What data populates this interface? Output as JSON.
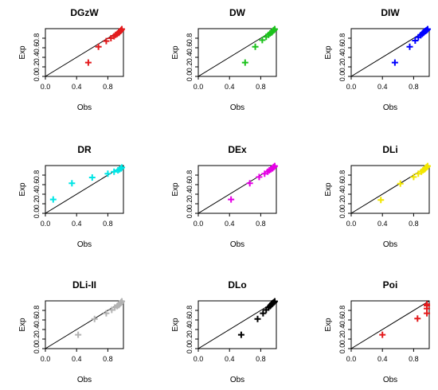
{
  "chart_data": [
    {
      "type": "scatter",
      "title": "DGzW",
      "xlabel": "Obs",
      "ylabel": "Exp",
      "xticks": [
        "0.0",
        "0.4",
        "0.8"
      ],
      "yticks": [
        "0.0",
        "0.2",
        "0.4",
        "0.6",
        "0.8"
      ],
      "xlim": [
        0,
        1
      ],
      "ylim": [
        0,
        1
      ],
      "reference_line": "y = x",
      "color": "#e41a1c",
      "marker": "plus",
      "x": [
        0.55,
        0.68,
        0.78,
        0.84,
        0.88,
        0.9,
        0.92,
        0.94,
        0.95,
        0.96,
        0.97,
        0.98
      ],
      "y": [
        0.29,
        0.62,
        0.74,
        0.8,
        0.84,
        0.87,
        0.89,
        0.91,
        0.93,
        0.95,
        0.97,
        0.99
      ]
    },
    {
      "type": "scatter",
      "title": "DW",
      "xlabel": "Obs",
      "ylabel": "Exp",
      "xticks": [
        "0.0",
        "0.4",
        "0.8"
      ],
      "yticks": [
        "0.0",
        "0.2",
        "0.4",
        "0.6",
        "0.8"
      ],
      "xlim": [
        0,
        1
      ],
      "ylim": [
        0,
        1
      ],
      "reference_line": "y = x",
      "color": "#1cc21c",
      "marker": "plus",
      "x": [
        0.6,
        0.73,
        0.82,
        0.87,
        0.9,
        0.92,
        0.94,
        0.95,
        0.96,
        0.97,
        0.98
      ],
      "y": [
        0.29,
        0.62,
        0.76,
        0.83,
        0.87,
        0.9,
        0.92,
        0.94,
        0.96,
        0.97,
        0.99
      ]
    },
    {
      "type": "scatter",
      "title": "DIW",
      "xlabel": "Obs",
      "ylabel": "Exp",
      "xticks": [
        "0.0",
        "0.4",
        "0.8"
      ],
      "yticks": [
        "0.0",
        "0.2",
        "0.4",
        "0.6",
        "0.8"
      ],
      "xlim": [
        0,
        1
      ],
      "ylim": [
        0,
        1
      ],
      "reference_line": "y = x",
      "color": "#0000ff",
      "marker": "plus",
      "x": [
        0.56,
        0.75,
        0.82,
        0.86,
        0.89,
        0.91,
        0.92,
        0.93,
        0.94,
        0.95,
        0.96,
        0.97,
        0.98
      ],
      "y": [
        0.29,
        0.62,
        0.75,
        0.82,
        0.86,
        0.89,
        0.91,
        0.92,
        0.94,
        0.95,
        0.96,
        0.97,
        0.99
      ]
    },
    {
      "type": "scatter",
      "title": "DR",
      "xlabel": "Obs",
      "ylabel": "Exp",
      "xticks": [
        "0.0",
        "0.4",
        "0.8"
      ],
      "yticks": [
        "0.0",
        "0.2",
        "0.4",
        "0.6",
        "0.8"
      ],
      "xlim": [
        0,
        1
      ],
      "ylim": [
        0,
        1
      ],
      "reference_line": "y = x",
      "color": "#00e5e5",
      "marker": "plus",
      "x": [
        0.1,
        0.34,
        0.6,
        0.8,
        0.88,
        0.93,
        0.95,
        0.97,
        0.98
      ],
      "y": [
        0.29,
        0.63,
        0.75,
        0.83,
        0.87,
        0.9,
        0.92,
        0.94,
        0.96
      ]
    },
    {
      "type": "scatter",
      "title": "DEx",
      "xlabel": "Obs",
      "ylabel": "Exp",
      "xticks": [
        "0.0",
        "0.4",
        "0.8"
      ],
      "yticks": [
        "0.0",
        "0.2",
        "0.4",
        "0.6",
        "0.8"
      ],
      "xlim": [
        0,
        1
      ],
      "ylim": [
        0,
        1
      ],
      "reference_line": "y = x",
      "color": "#e600e6",
      "marker": "plus",
      "x": [
        0.42,
        0.66,
        0.78,
        0.85,
        0.89,
        0.91,
        0.93,
        0.95,
        0.96,
        0.97,
        0.98
      ],
      "y": [
        0.29,
        0.63,
        0.76,
        0.83,
        0.87,
        0.9,
        0.92,
        0.94,
        0.96,
        0.97,
        0.99
      ]
    },
    {
      "type": "scatter",
      "title": "DLi",
      "xlabel": "Obs",
      "ylabel": "Exp",
      "xticks": [
        "0.0",
        "0.4",
        "0.8"
      ],
      "yticks": [
        "0.0",
        "0.2",
        "0.4",
        "0.6",
        "0.8"
      ],
      "xlim": [
        0,
        1
      ],
      "ylim": [
        0,
        1
      ],
      "reference_line": "y = x",
      "color": "#f2e600",
      "marker": "plus",
      "x": [
        0.38,
        0.63,
        0.8,
        0.86,
        0.9,
        0.92,
        0.94,
        0.95,
        0.96,
        0.97,
        0.98
      ],
      "y": [
        0.28,
        0.62,
        0.76,
        0.83,
        0.87,
        0.9,
        0.92,
        0.94,
        0.96,
        0.97,
        0.99
      ]
    },
    {
      "type": "scatter",
      "title": "DLi-II",
      "xlabel": "Obs",
      "ylabel": "Exp",
      "xticks": [
        "0.0",
        "0.4",
        "0.8"
      ],
      "yticks": [
        "0.0",
        "0.2",
        "0.4",
        "0.6",
        "0.8"
      ],
      "xlim": [
        0,
        1
      ],
      "ylim": [
        0,
        1
      ],
      "reference_line": "y = x",
      "color": "#b3b3b3",
      "marker": "plus",
      "x": [
        0.42,
        0.63,
        0.78,
        0.85,
        0.89,
        0.92,
        0.94,
        0.95,
        0.96,
        0.97,
        0.98
      ],
      "y": [
        0.29,
        0.62,
        0.74,
        0.81,
        0.86,
        0.89,
        0.91,
        0.93,
        0.95,
        0.97,
        0.99
      ]
    },
    {
      "type": "scatter",
      "title": "DLo",
      "xlabel": "Obs",
      "ylabel": "Exp",
      "xticks": [
        "0.0",
        "0.4",
        "0.8"
      ],
      "yticks": [
        "0.0",
        "0.2",
        "0.4",
        "0.6",
        "0.8"
      ],
      "xlim": [
        0,
        1
      ],
      "ylim": [
        0,
        1
      ],
      "reference_line": "y = x",
      "color": "#000000",
      "marker": "plus",
      "x": [
        0.55,
        0.76,
        0.83,
        0.87,
        0.9,
        0.92,
        0.93,
        0.94,
        0.95,
        0.96,
        0.97,
        0.98
      ],
      "y": [
        0.29,
        0.62,
        0.74,
        0.81,
        0.86,
        0.89,
        0.91,
        0.93,
        0.95,
        0.96,
        0.97,
        0.99
      ]
    },
    {
      "type": "scatter",
      "title": "Poi",
      "xlabel": "Obs",
      "ylabel": "Exp",
      "xticks": [
        "0.0",
        "0.4",
        "0.8"
      ],
      "yticks": [
        "0.0",
        "0.2",
        "0.4",
        "0.6",
        "0.8"
      ],
      "xlim": [
        0,
        1
      ],
      "ylim": [
        0,
        1
      ],
      "reference_line": "y = x",
      "color": "#e41a1c",
      "marker": "plus",
      "x": [
        0.4,
        0.85,
        0.97,
        0.97,
        0.97,
        0.97
      ],
      "y": [
        0.29,
        0.63,
        0.74,
        0.84,
        0.9,
        0.93
      ]
    }
  ]
}
